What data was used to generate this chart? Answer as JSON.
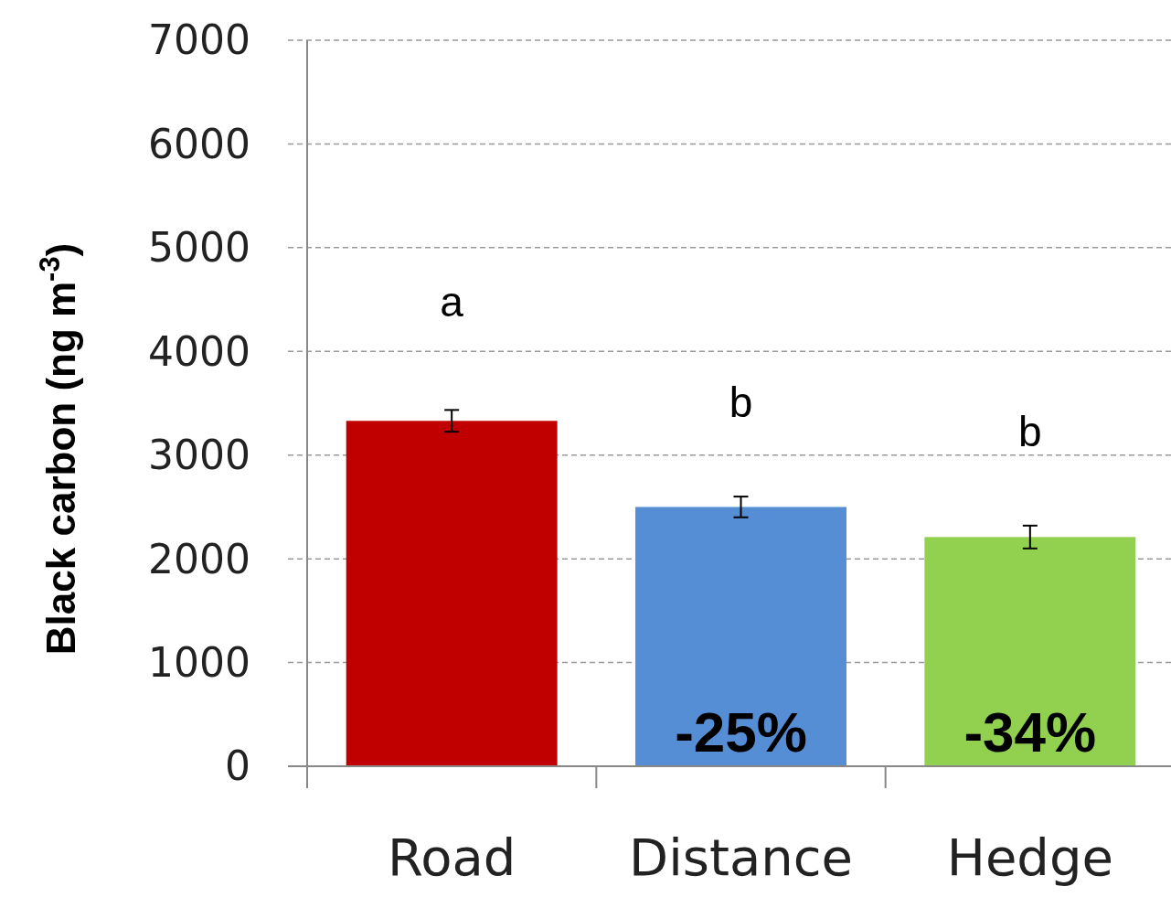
{
  "chart_data": {
    "type": "bar",
    "ylabel": "Black carbon (ng m$^{-3}$)",
    "categories": [
      "Road",
      "Distance",
      "Hedge"
    ],
    "values": [
      3330,
      2500,
      2210
    ],
    "colors": [
      "#c00000",
      "#558ed5",
      "#92d050"
    ],
    "errors": [
      105,
      100,
      110
    ],
    "ylim": [
      0,
      7000
    ],
    "yticks": [
      0,
      1000,
      2000,
      3000,
      4000,
      5000,
      6000,
      7000
    ],
    "grid": "y",
    "annotations": [
      "a",
      "b",
      "b",
      "-25%",
      "-34%"
    ]
  }
}
